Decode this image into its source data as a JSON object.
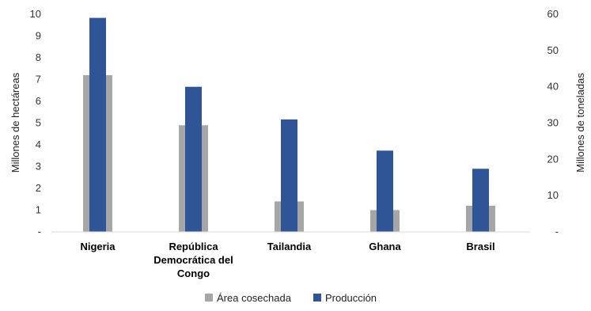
{
  "chart_data": {
    "type": "bar",
    "categories": [
      [
        "Nigeria"
      ],
      [
        "República",
        "Democrática del",
        "Congo"
      ],
      [
        "Tailandia"
      ],
      [
        "Ghana"
      ],
      [
        "Brasil"
      ]
    ],
    "series": [
      {
        "name": "Área cosechada",
        "axis": "left",
        "color": "#a6a6a6",
        "values": [
          7.2,
          4.9,
          1.4,
          1.0,
          1.2
        ]
      },
      {
        "name": "Producción",
        "axis": "right",
        "color": "#2f5597",
        "values": [
          59.0,
          40.0,
          31.0,
          22.4,
          17.4
        ]
      }
    ],
    "y_left": {
      "label": "Millones de hectáreas",
      "range": [
        0,
        10
      ],
      "ticks": [
        "-",
        "1",
        "2",
        "3",
        "4",
        "5",
        "6",
        "7",
        "8",
        "9",
        "10"
      ]
    },
    "y_right": {
      "label": "Millones de toneladas",
      "range": [
        0,
        60
      ],
      "ticks": [
        "-",
        "10",
        "20",
        "30",
        "40",
        "50",
        "60"
      ]
    },
    "grid": false,
    "legend": "bottom-center"
  }
}
